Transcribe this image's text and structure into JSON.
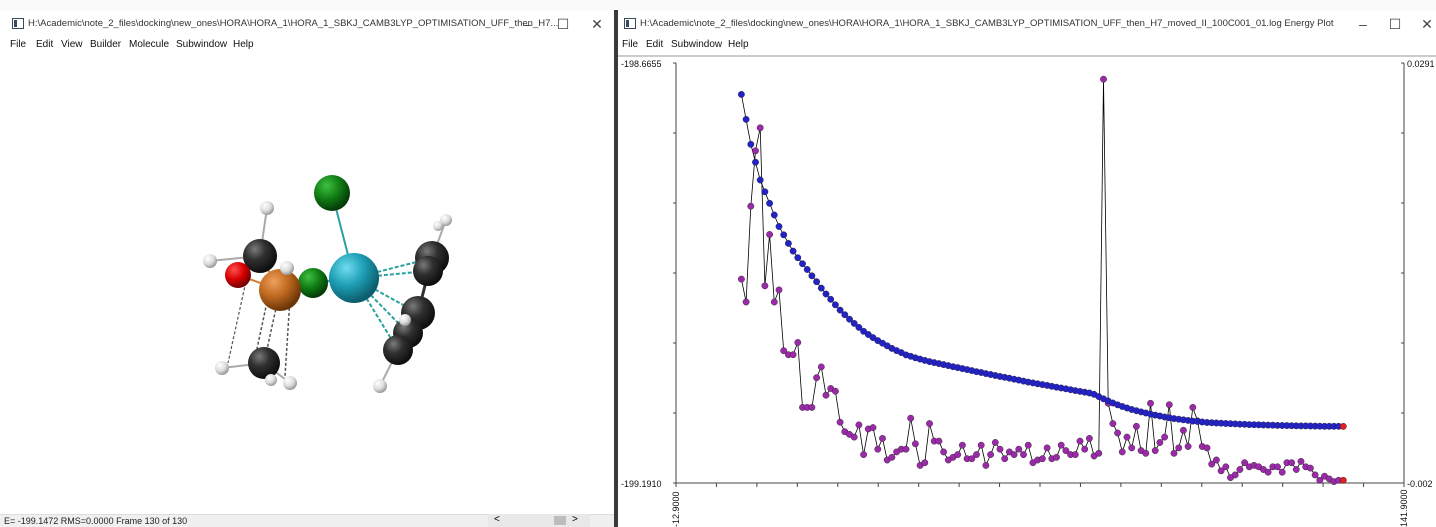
{
  "left_window": {
    "title": "H:\\Academic\\note_2_files\\docking\\new_ones\\HORA\\HORA_1\\HORA_1_SBKJ_CAMB3LYP_OPTIMISATION_UFF_then_H7...",
    "controls": {
      "minimize": "–",
      "maximize": "☐",
      "close": "✕"
    },
    "menu": [
      "File",
      "Edit",
      "View",
      "Builder",
      "Molecule",
      "Subwindow",
      "Help"
    ],
    "status": "E= -199.1472 RMS=0.0000 Frame 130 of 130",
    "scroll_left": "<",
    "scroll_right": ">"
  },
  "right_window": {
    "title": "H:\\Academic\\note_2_files\\docking\\new_ones\\HORA\\HORA_1\\HORA_1_SBKJ_CAMB3LYP_OPTIMISATION_UFF_then_H7_moved_II_100C001_01.log Energy Plot",
    "controls": {
      "minimize": "–",
      "maximize": "☐",
      "close": "✕"
    },
    "menu": [
      "File",
      "Edit",
      "Subwindow",
      "Help"
    ]
  },
  "molecule": {
    "atoms": [
      {
        "id": "cl-top",
        "element": "Cl",
        "color": "#0f7a12"
      },
      {
        "id": "metal-center",
        "element": "Metal",
        "color": "#1e9fb5"
      },
      {
        "id": "cl-bridge",
        "element": "Cl",
        "color": "#17801c"
      },
      {
        "id": "metal-left",
        "element": "Metal",
        "color": "#c06a20"
      },
      {
        "id": "oxygen",
        "element": "O",
        "color": "#d80000"
      },
      {
        "id": "carbon-a",
        "element": "C",
        "color": "#2a2a2a"
      },
      {
        "id": "carbon-b",
        "element": "C",
        "color": "#2a2a2a"
      },
      {
        "id": "carbon-c",
        "element": "C",
        "color": "#2a2a2a"
      },
      {
        "id": "carbon-d",
        "element": "C",
        "color": "#2a2a2a"
      },
      {
        "id": "carbon-e",
        "element": "C",
        "color": "#2a2a2a"
      },
      {
        "id": "hydrogen",
        "element": "H",
        "color": "#e6e6e6"
      }
    ]
  },
  "chart_data": {
    "type": "scatter",
    "left_axis": {
      "top_label": "-198.6655",
      "bottom_label": "-199.1910",
      "ylim": [
        -199.191,
        -198.6655
      ]
    },
    "right_axis": {
      "top_label": "0.0291",
      "bottom_label": "-0.002"
    },
    "x_axis": {
      "left_label": "-12.9000",
      "right_label": "141.9000",
      "xlim": [
        -12.9,
        141.9
      ]
    },
    "colors": {
      "energy": "#2222c8",
      "gradient": "#9a2aa8",
      "line": "#000000",
      "final": "#e02020"
    },
    "series": [
      {
        "key": "energy",
        "x": [
          1,
          2,
          3,
          4,
          5,
          6,
          7,
          8,
          9,
          10,
          11,
          12,
          13,
          14,
          15,
          16,
          17,
          18,
          19,
          20,
          21,
          22,
          23,
          24,
          25,
          26,
          27,
          28,
          29,
          30,
          31,
          32,
          33,
          34,
          35,
          36,
          37,
          38,
          39,
          40,
          41,
          42,
          43,
          44,
          45,
          46,
          47,
          48,
          49,
          50,
          51,
          52,
          53,
          54,
          55,
          56,
          57,
          58,
          59,
          60,
          61,
          62,
          63,
          64,
          65,
          66,
          67,
          68,
          69,
          70,
          71,
          72,
          73,
          74,
          75,
          76,
          77,
          78,
          79,
          80,
          81,
          82,
          83,
          84,
          85,
          86,
          87,
          88,
          89,
          90,
          91,
          92,
          93,
          94,
          95,
          96,
          97,
          98,
          99,
          100,
          101,
          102,
          103,
          104,
          105,
          106,
          107,
          108,
          109,
          110,
          111,
          112,
          113,
          114,
          115,
          116,
          117,
          118,
          119,
          120,
          121,
          122,
          123,
          124,
          125,
          126,
          127,
          128,
          129
        ],
        "y": [
          -198.7048,
          -198.7361,
          -198.7672,
          -198.7896,
          -198.8119,
          -198.8266,
          -198.8411,
          -198.8557,
          -198.8701,
          -198.8805,
          -198.8912,
          -198.9008,
          -198.9091,
          -198.9166,
          -198.9239,
          -198.9317,
          -198.9391,
          -198.9472,
          -198.9545,
          -198.9612,
          -198.9681,
          -198.9747,
          -198.9804,
          -198.9861,
          -198.9913,
          -198.9963,
          -199.0012,
          -199.0052,
          -199.0091,
          -199.0128,
          -199.0161,
          -199.0193,
          -199.0226,
          -199.0254,
          -199.0278,
          -199.0307,
          -199.0325,
          -199.0344,
          -199.036,
          -199.0376,
          -199.0391,
          -199.0404,
          -199.0416,
          -199.0428,
          -199.0441,
          -199.0455,
          -199.0466,
          -199.0479,
          -199.0491,
          -199.0504,
          -199.0517,
          -199.0528,
          -199.0541,
          -199.0553,
          -199.0565,
          -199.0577,
          -199.0588,
          -199.0599,
          -199.0611,
          -199.0623,
          -199.0635,
          -199.0647,
          -199.0658,
          -199.0669,
          -199.0679,
          -199.0689,
          -199.07,
          -199.0711,
          -199.0721,
          -199.0732,
          -199.0743,
          -199.0754,
          -199.0764,
          -199.0774,
          -199.0784,
          -199.08,
          -199.0829,
          -199.0856,
          -199.0883,
          -199.0909,
          -199.0932,
          -199.0953,
          -199.0971,
          -199.0991,
          -199.1006,
          -199.102,
          -199.1034,
          -199.1048,
          -199.1061,
          -199.1072,
          -199.1084,
          -199.1093,
          -199.1104,
          -199.1112,
          -199.1119,
          -199.1127,
          -199.1135,
          -199.1141,
          -199.1147,
          -199.1153,
          -199.1156,
          -199.1159,
          -199.1162,
          -199.1165,
          -199.1168,
          -199.1171,
          -199.1174,
          -199.1176,
          -199.1179,
          -199.118,
          -199.1182,
          -199.1184,
          -199.1186,
          -199.1187,
          -199.1189,
          -199.119,
          -199.1192,
          -199.1193,
          -199.1194,
          -199.1195,
          -199.1196,
          -199.1197,
          -199.1198,
          -199.1199,
          -199.12,
          -199.12,
          -199.1201,
          -199.1201,
          -199.1202
        ]
      },
      {
        "key": "gradient",
        "x": [
          1,
          2,
          3,
          4,
          5,
          6,
          7,
          8,
          9,
          10,
          11,
          12,
          13,
          14,
          15,
          16,
          17,
          18,
          19,
          20,
          21,
          22,
          23,
          24,
          25,
          26,
          27,
          28,
          29,
          30,
          31,
          32,
          33,
          34,
          35,
          36,
          37,
          38,
          39,
          40,
          41,
          42,
          43,
          44,
          45,
          46,
          47,
          48,
          49,
          50,
          51,
          52,
          53,
          54,
          55,
          56,
          57,
          58,
          59,
          60,
          61,
          62,
          63,
          64,
          65,
          66,
          67,
          68,
          69,
          70,
          71,
          72,
          73,
          74,
          75,
          76,
          77,
          78,
          79,
          80,
          81,
          82,
          83,
          84,
          85,
          86,
          87,
          88,
          89,
          90,
          91,
          92,
          93,
          94,
          95,
          96,
          97,
          98,
          99,
          100,
          101,
          102,
          103,
          104,
          105,
          106,
          107,
          108,
          109,
          110,
          111,
          112,
          113,
          114,
          115,
          116,
          117,
          118,
          119,
          120,
          121,
          122,
          123,
          124,
          125,
          126,
          127,
          128,
          129
        ],
        "y": [
          0.0131,
          0.0114,
          0.0185,
          0.0226,
          0.0243,
          0.0126,
          0.0164,
          0.0114,
          0.0123,
          0.0078,
          0.0075,
          0.0075,
          0.0084,
          0.0036,
          0.0036,
          0.0036,
          0.0058,
          0.0066,
          0.0045,
          0.005,
          0.0048,
          0.0025,
          0.0018,
          0.0016,
          0.0014,
          0.0023,
          0.0001,
          0.002,
          0.0021,
          0.0005,
          0.0013,
          -0.0003,
          -0.0001,
          0.0003,
          0.0005,
          0.0005,
          0.0028,
          0.0009,
          -0.0007,
          -0.0005,
          0.0024,
          0.0011,
          0.0011,
          0.0003,
          -0.0003,
          -0.0001,
          0.0001,
          0.0008,
          -0.0002,
          -0.0002,
          0.0001,
          0.0008,
          -0.0007,
          0.0001,
          0.001,
          0.0005,
          -0.0002,
          0.0003,
          0.0001,
          0.0005,
          0.0001,
          0.0008,
          -0.0005,
          -0.0003,
          -0.0002,
          0.0006,
          -0.0002,
          -0.0001,
          0.0008,
          0.0004,
          0.0001,
          0.0001,
          0.0011,
          0.0005,
          0.0013,
          0.0,
          0.0002,
          0.0279,
          0.0039,
          0.0024,
          0.0017,
          0.0003,
          0.0014,
          0.0006,
          0.0022,
          0.0004,
          0.0002,
          0.0039,
          0.0004,
          0.001,
          0.0014,
          0.0038,
          0.0002,
          0.0006,
          0.0019,
          0.0007,
          0.0036,
          0.0026,
          0.0007,
          0.0006,
          -0.0006,
          -0.0003,
          -0.0011,
          -0.0008,
          -0.0016,
          -0.0014,
          -0.001,
          -0.0005,
          -0.0008,
          -0.0007,
          -0.0008,
          -0.001,
          -0.0012,
          -0.0008,
          -0.0008,
          -0.0012,
          -0.0005,
          -0.0005,
          -0.001,
          -0.0004,
          -0.0008,
          -0.0009,
          -0.0014,
          -0.0018,
          -0.0015,
          -0.0017,
          -0.0019,
          -0.0018,
          -0.0018
        ]
      }
    ]
  }
}
